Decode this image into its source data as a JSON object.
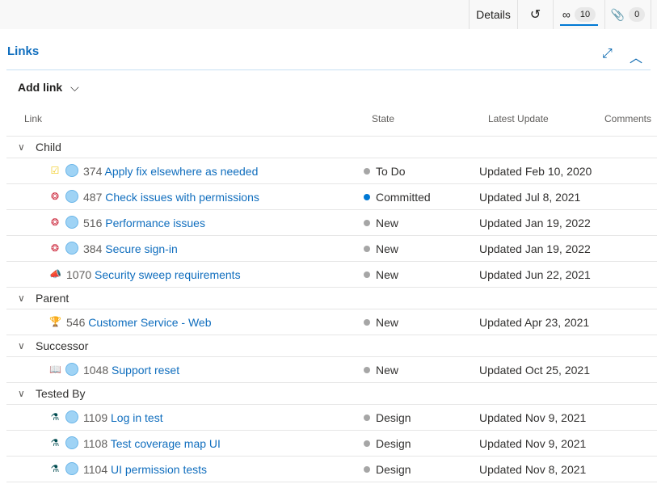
{
  "tabs": {
    "details": "Details",
    "history_icon": "history-icon",
    "links_icon": "link-icon",
    "links_count": "10",
    "attachments_icon": "paperclip-icon",
    "attachments_count": "0"
  },
  "section": {
    "title": "Links",
    "add_link": "Add link"
  },
  "columns": {
    "link": "Link",
    "state": "State",
    "latest_update": "Latest Update",
    "comments": "Comments"
  },
  "colors": {
    "accent": "#0078d4",
    "committed": "#0078d4",
    "neutral_state": "#a6a6a6"
  },
  "groups": [
    {
      "name": "Child",
      "items": [
        {
          "type": "task",
          "icon": "clipboard-check-icon",
          "color": "#f2cb1d",
          "avatar": true,
          "id": "374",
          "title": "Apply fix elsewhere as needed",
          "state": "To Do",
          "update": "Updated Feb 10, 2020"
        },
        {
          "type": "bug",
          "icon": "bug-icon",
          "color": "#cc293d",
          "avatar": true,
          "id": "487",
          "title": "Check issues with permissions",
          "state": "Committed",
          "update": "Updated Jul 8, 2021"
        },
        {
          "type": "bug",
          "icon": "bug-icon",
          "color": "#cc293d",
          "avatar": true,
          "id": "516",
          "title": "Performance issues",
          "state": "New",
          "update": "Updated Jan 19, 2022"
        },
        {
          "type": "bug",
          "icon": "bug-icon",
          "color": "#cc293d",
          "avatar": true,
          "id": "384",
          "title": "Secure sign-in",
          "state": "New",
          "update": "Updated Jan 19, 2022"
        },
        {
          "type": "feedback",
          "icon": "megaphone-icon",
          "color": "#ff6fb5",
          "avatar": false,
          "id": "1070",
          "title": "Security sweep requirements",
          "state": "New",
          "update": "Updated Jun 22, 2021"
        }
      ]
    },
    {
      "name": "Parent",
      "items": [
        {
          "type": "feature",
          "icon": "trophy-icon",
          "color": "#773b93",
          "avatar": false,
          "id": "546",
          "title": "Customer Service - Web",
          "state": "New",
          "update": "Updated Apr 23, 2021"
        }
      ]
    },
    {
      "name": "Successor",
      "items": [
        {
          "type": "story",
          "icon": "book-icon",
          "color": "#009ccc",
          "avatar": true,
          "id": "1048",
          "title": "Support reset",
          "state": "New",
          "update": "Updated Oct 25, 2021"
        }
      ]
    },
    {
      "name": "Tested By",
      "items": [
        {
          "type": "test",
          "icon": "test-case-icon",
          "color": "#004b50",
          "avatar": true,
          "id": "1109",
          "title": "Log in test",
          "state": "Design",
          "update": "Updated Nov 9, 2021"
        },
        {
          "type": "test",
          "icon": "test-case-icon",
          "color": "#004b50",
          "avatar": true,
          "id": "1108",
          "title": "Test coverage map UI",
          "state": "Design",
          "update": "Updated Nov 9, 2021"
        },
        {
          "type": "test",
          "icon": "test-case-icon",
          "color": "#004b50",
          "avatar": true,
          "id": "1104",
          "title": "UI permission tests",
          "state": "Design",
          "update": "Updated Nov 8, 2021"
        }
      ]
    }
  ]
}
